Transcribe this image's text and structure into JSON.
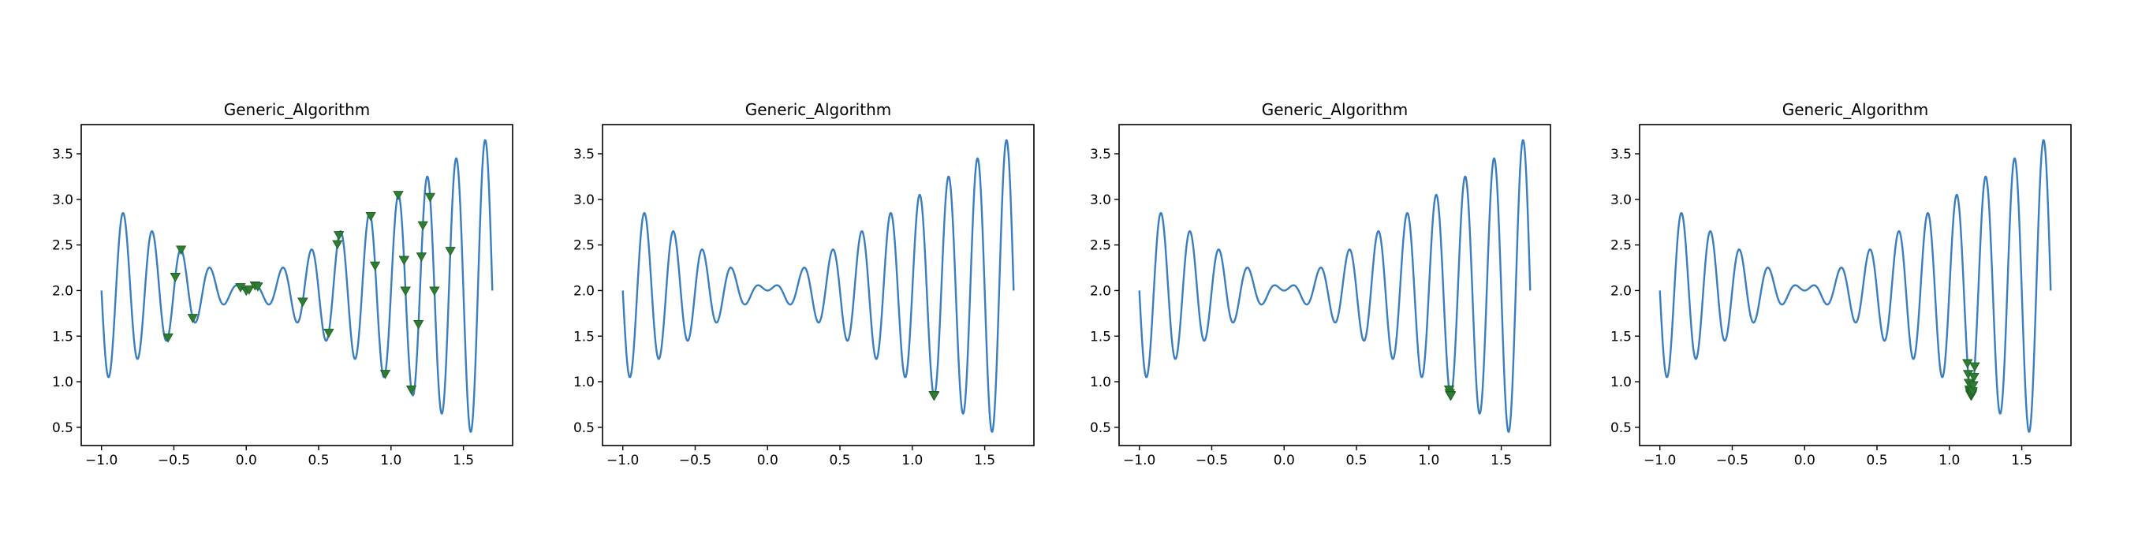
{
  "colors": {
    "curve": "#3a7ebf",
    "marker": "#2e7d32",
    "marker_edge": "#1b5e20"
  },
  "chart_data": [
    {
      "type": "line",
      "title": "Generic_Algorithm",
      "function": "x*sin(10*pi*x)+2",
      "x_range": [
        -1.0,
        1.7
      ],
      "xlim": [
        -1.14,
        1.84
      ],
      "ylim": [
        0.3,
        3.82
      ],
      "x_ticks": [
        -1.0,
        -0.5,
        0.0,
        0.5,
        1.0,
        1.5
      ],
      "x_tick_labels": [
        "−1.0",
        "−0.5",
        "0.0",
        "0.5",
        "1.0",
        "1.5"
      ],
      "y_ticks": [
        0.5,
        1.0,
        1.5,
        2.0,
        2.5,
        3.0,
        3.5
      ],
      "y_tick_labels": [
        "0.5",
        "1.0",
        "1.5",
        "2.0",
        "2.5",
        "3.0",
        "3.5"
      ],
      "population_x": [
        -0.54,
        -0.49,
        -0.49,
        -0.45,
        -0.37,
        -0.04,
        0.0,
        0.02,
        0.06,
        0.08,
        0.39,
        0.39,
        0.57,
        0.63,
        0.64,
        0.86,
        0.89,
        0.96,
        1.05,
        1.09,
        1.09,
        1.1,
        1.1,
        1.14,
        1.19,
        1.21,
        1.22,
        1.27,
        1.3,
        1.41
      ]
    },
    {
      "type": "line",
      "title": "Generic_Algorithm",
      "function": "x*sin(10*pi*x)+2",
      "x_range": [
        -1.0,
        1.7
      ],
      "xlim": [
        -1.14,
        1.84
      ],
      "ylim": [
        0.3,
        3.82
      ],
      "x_ticks": [
        -1.0,
        -0.5,
        0.0,
        0.5,
        1.0,
        1.5
      ],
      "x_tick_labels": [
        "−1.0",
        "−0.5",
        "0.0",
        "0.5",
        "1.0",
        "1.5"
      ],
      "y_ticks": [
        0.5,
        1.0,
        1.5,
        2.0,
        2.5,
        3.0,
        3.5
      ],
      "y_tick_labels": [
        "0.5",
        "1.0",
        "1.5",
        "2.0",
        "2.5",
        "3.0",
        "3.5"
      ],
      "population_x": [
        1.148,
        1.15,
        1.152
      ]
    },
    {
      "type": "line",
      "title": "Generic_Algorithm",
      "function": "x*sin(10*pi*x)+2",
      "x_range": [
        -1.0,
        1.7
      ],
      "xlim": [
        -1.14,
        1.84
      ],
      "ylim": [
        0.3,
        3.82
      ],
      "x_ticks": [
        -1.0,
        -0.5,
        0.0,
        0.5,
        1.0,
        1.5
      ],
      "x_tick_labels": [
        "−1.0",
        "−0.5",
        "0.0",
        "0.5",
        "1.0",
        "1.5"
      ],
      "y_ticks": [
        0.5,
        1.0,
        1.5,
        2.0,
        2.5,
        3.0,
        3.5
      ],
      "y_tick_labels": [
        "0.5",
        "1.0",
        "1.5",
        "2.0",
        "2.5",
        "3.0",
        "3.5"
      ],
      "population_x": [
        1.14,
        1.144,
        1.148,
        1.15,
        1.152
      ]
    },
    {
      "type": "line",
      "title": "Generic_Algorithm",
      "function": "x*sin(10*pi*x)+2",
      "x_range": [
        -1.0,
        1.7
      ],
      "xlim": [
        -1.14,
        1.84
      ],
      "ylim": [
        0.3,
        3.82
      ],
      "x_ticks": [
        -1.0,
        -0.5,
        0.0,
        0.5,
        1.0,
        1.5
      ],
      "x_tick_labels": [
        "−1.0",
        "−0.5",
        "0.0",
        "0.5",
        "1.0",
        "1.5"
      ],
      "y_ticks": [
        0.5,
        1.0,
        1.5,
        2.0,
        2.5,
        3.0,
        3.5
      ],
      "y_tick_labels": [
        "0.5",
        "1.0",
        "1.5",
        "2.0",
        "2.5",
        "3.0",
        "3.5"
      ],
      "population_x": [
        1.125,
        1.13,
        1.135,
        1.14,
        1.142,
        1.145,
        1.148,
        1.15,
        1.152,
        1.155,
        1.158,
        1.16,
        1.165,
        1.17,
        1.175
      ]
    }
  ]
}
